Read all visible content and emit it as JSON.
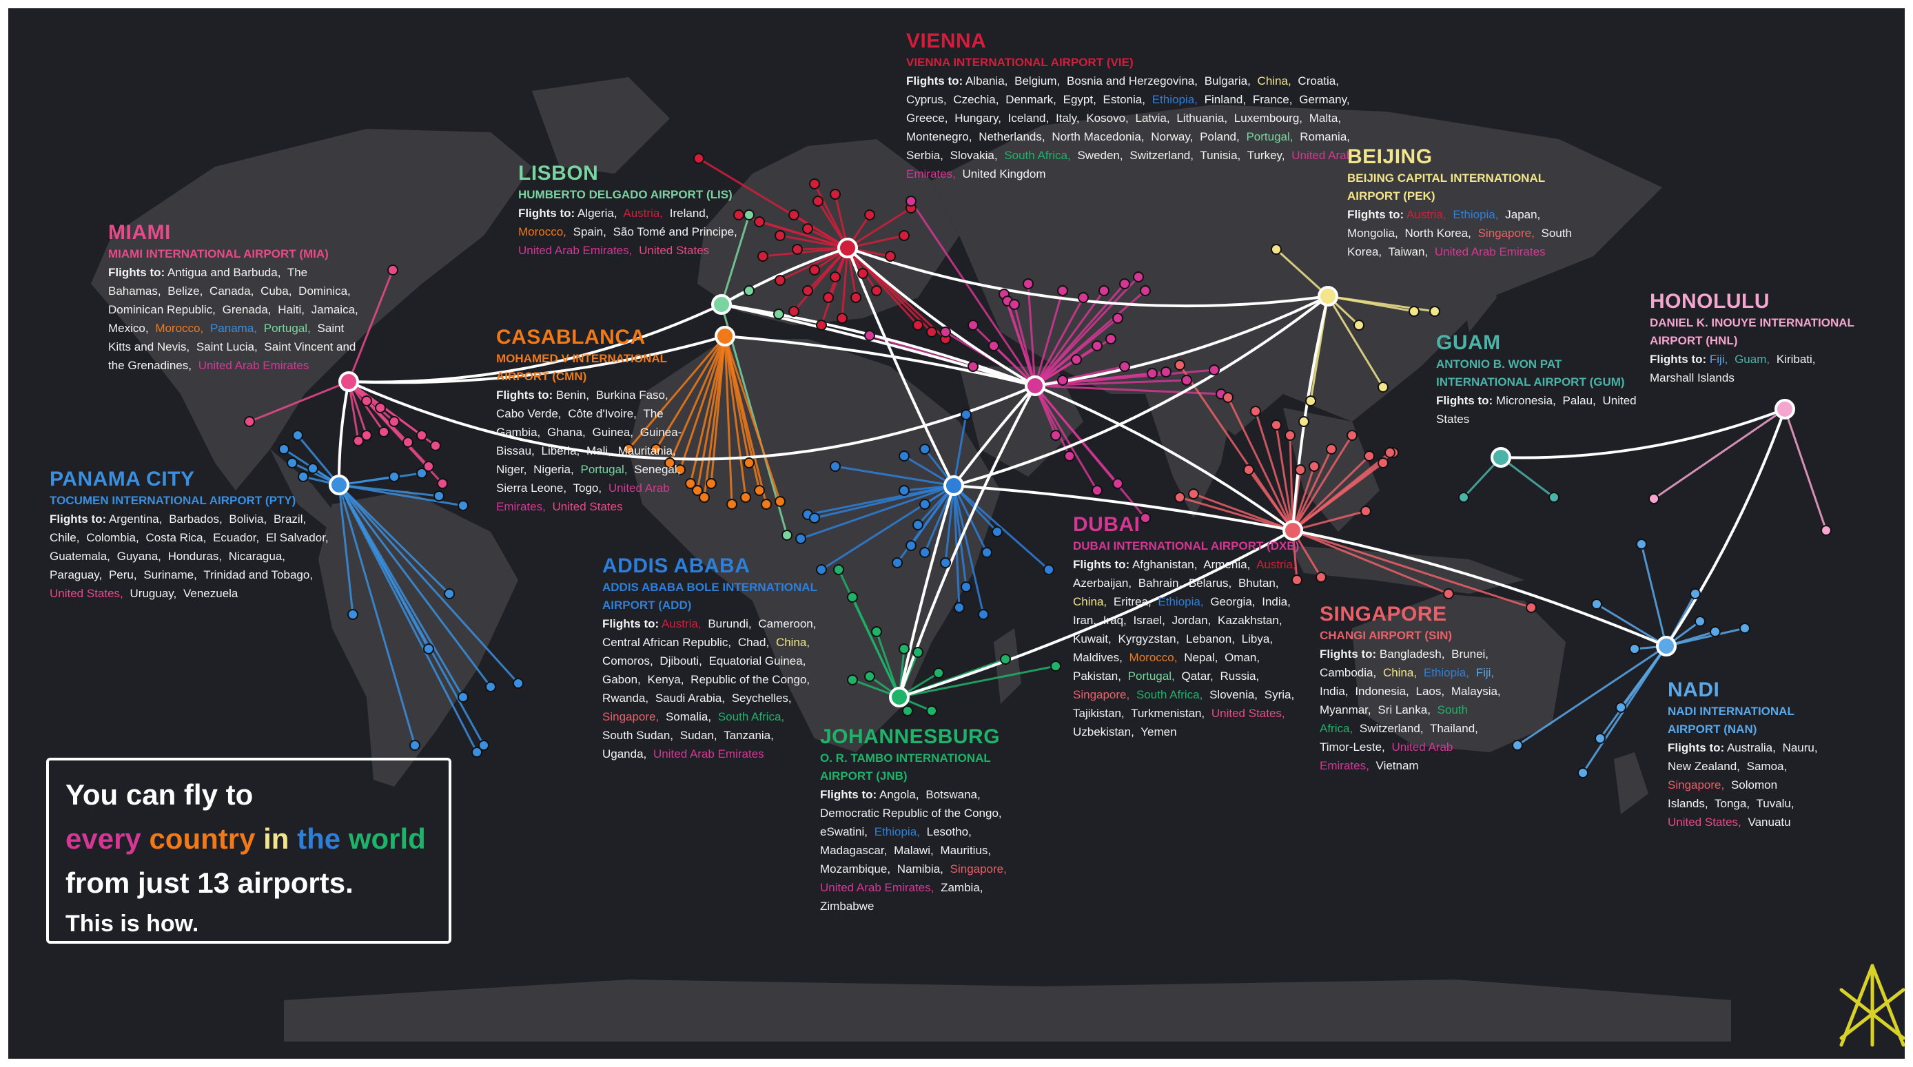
{
  "colors": {
    "background": "#1f1f26",
    "land": "#3b3b3f",
    "route_main": "#ffffff",
    "vienna": "#d21e3a",
    "lisbon": "#7ad4a0",
    "miami": "#e84a8a",
    "casablanca": "#f07a1a",
    "panama": "#3a8fde",
    "addis": "#2d7fd8",
    "johannesburg": "#1fb36a",
    "dubai": "#d43794",
    "beijing": "#f2e58a",
    "guam": "#4cb3a8",
    "honolulu": "#f5a6cf",
    "singapore": "#ea6068",
    "nadi": "#5aa8e8"
  },
  "hubs": [
    {
      "key": "vienna",
      "name": "VIENNA",
      "airport": "VIENNA INTERNATIONAL AIRPORT (VIE)",
      "flights_label": "Flights to:",
      "dests": [
        {
          "t": "Albania,"
        },
        {
          "t": "Belgium,"
        },
        {
          "t": "Bosnia and Herzegovina,"
        },
        {
          "t": "Bulgaria,"
        },
        {
          "t": "China,",
          "c": "beijing"
        },
        {
          "t": "Croatia,"
        },
        {
          "t": "Cyprus,"
        },
        {
          "t": "Czechia,"
        },
        {
          "t": "Denmark,"
        },
        {
          "t": "Egypt,"
        },
        {
          "t": "Estonia,"
        },
        {
          "t": "Ethiopia,",
          "c": "addis"
        },
        {
          "t": "Finland,"
        },
        {
          "t": "France,"
        },
        {
          "t": "Germany,"
        },
        {
          "t": "Greece,"
        },
        {
          "t": "Hungary,"
        },
        {
          "t": "Iceland,"
        },
        {
          "t": "Italy,"
        },
        {
          "t": "Kosovo,"
        },
        {
          "t": "Latvia,"
        },
        {
          "t": "Lithuania,"
        },
        {
          "t": "Luxembourg,"
        },
        {
          "t": "Malta,"
        },
        {
          "t": "Montenegro,"
        },
        {
          "t": "Netherlands,"
        },
        {
          "t": "North Macedonia,"
        },
        {
          "t": "Norway,"
        },
        {
          "t": "Poland,"
        },
        {
          "t": "Portugal,",
          "c": "lisbon"
        },
        {
          "t": "Romania,"
        },
        {
          "t": "Serbia,"
        },
        {
          "t": "Slovakia,"
        },
        {
          "t": "South Africa,",
          "c": "johannesburg"
        },
        {
          "t": "Sweden,"
        },
        {
          "t": "Switzerland,"
        },
        {
          "t": "Tunisia,"
        },
        {
          "t": "Turkey,"
        },
        {
          "t": "United Arab Emirates,",
          "c": "dubai"
        },
        {
          "t": "United Kingdom"
        }
      ]
    },
    {
      "key": "lisbon",
      "name": "LISBON",
      "airport": "HUMBERTO DELGADO AIRPORT (LIS)",
      "flights_label": "Flights to:",
      "dests": [
        {
          "t": "Algeria,"
        },
        {
          "t": "Austria,",
          "c": "vienna"
        },
        {
          "t": "Ireland,"
        },
        {
          "t": "Morocco,",
          "c": "casablanca"
        },
        {
          "t": "Spain,"
        },
        {
          "t": "São Tomé and Principe,"
        },
        {
          "t": "United Arab Emirates,",
          "c": "dubai"
        },
        {
          "t": "United States",
          "c": "miami"
        }
      ]
    },
    {
      "key": "miami",
      "name": "MIAMI",
      "airport": "MIAMI INTERNATIONAL AIRPORT (MIA)",
      "flights_label": "Flights to:",
      "dests": [
        {
          "t": "Antigua and Barbuda,"
        },
        {
          "t": "The Bahamas,"
        },
        {
          "t": "Belize,"
        },
        {
          "t": "Canada,"
        },
        {
          "t": "Cuba,"
        },
        {
          "t": "Dominica,"
        },
        {
          "t": "Dominican Republic,"
        },
        {
          "t": "Grenada,"
        },
        {
          "t": "Haiti,"
        },
        {
          "t": "Jamaica,"
        },
        {
          "t": "Mexico,"
        },
        {
          "t": "Morocco,",
          "c": "casablanca"
        },
        {
          "t": "Panama,",
          "c": "panama"
        },
        {
          "t": "Portugal,",
          "c": "lisbon"
        },
        {
          "t": "Saint Kitts and Nevis,"
        },
        {
          "t": "Saint Lucia,"
        },
        {
          "t": "Saint Vincent and the Grenadines,"
        },
        {
          "t": "United Arab Emirates",
          "c": "dubai"
        }
      ]
    },
    {
      "key": "casablanca",
      "name": "CASABLANCA",
      "airport": "MOHAMED V INTERNATIONAL AIRPORT (CMN)",
      "flights_label": "Flights to:",
      "dests": [
        {
          "t": "Benin,"
        },
        {
          "t": "Burkina Faso,"
        },
        {
          "t": "Cabo Verde,"
        },
        {
          "t": "Côte d'Ivoire,"
        },
        {
          "t": "The Gambia,"
        },
        {
          "t": "Ghana,"
        },
        {
          "t": "Guinea,"
        },
        {
          "t": "Guinea-Bissau,"
        },
        {
          "t": "Liberia,"
        },
        {
          "t": "Mali,"
        },
        {
          "t": "Mauritania,"
        },
        {
          "t": "Niger,"
        },
        {
          "t": "Nigeria,"
        },
        {
          "t": "Portugal,",
          "c": "lisbon"
        },
        {
          "t": "Senegal,"
        },
        {
          "t": "Sierra Leone,"
        },
        {
          "t": "Togo,"
        },
        {
          "t": "United Arab Emirates,",
          "c": "dubai"
        },
        {
          "t": "United States",
          "c": "miami"
        }
      ]
    },
    {
      "key": "panama",
      "name": "PANAMA CITY",
      "airport": "TOCUMEN INTERNATIONAL AIRPORT (PTY)",
      "flights_label": "Flights to:",
      "dests": [
        {
          "t": "Argentina,"
        },
        {
          "t": "Barbados,"
        },
        {
          "t": "Bolivia,"
        },
        {
          "t": "Brazil,"
        },
        {
          "t": "Chile,"
        },
        {
          "t": "Colombia,"
        },
        {
          "t": "Costa Rica,"
        },
        {
          "t": "Ecuador,"
        },
        {
          "t": "El Salvador,"
        },
        {
          "t": "Guatemala,"
        },
        {
          "t": "Guyana,"
        },
        {
          "t": "Honduras,"
        },
        {
          "t": "Nicaragua,"
        },
        {
          "t": "Paraguay,"
        },
        {
          "t": "Peru,"
        },
        {
          "t": "Suriname,"
        },
        {
          "t": "Trinidad and Tobago,"
        },
        {
          "t": "United States,",
          "c": "miami"
        },
        {
          "t": "Uruguay,"
        },
        {
          "t": "Venezuela"
        }
      ]
    },
    {
      "key": "addis",
      "name": "ADDIS ABABA",
      "airport": "ADDIS ABABA BOLE INTERNATIONAL AIRPORT (ADD)",
      "flights_label": "Flights to:",
      "dests": [
        {
          "t": "Austria,",
          "c": "vienna"
        },
        {
          "t": "Burundi,"
        },
        {
          "t": "Cameroon,"
        },
        {
          "t": "Central African Republic,"
        },
        {
          "t": "Chad,"
        },
        {
          "t": "China,",
          "c": "beijing"
        },
        {
          "t": "Comoros,"
        },
        {
          "t": "Djibouti,"
        },
        {
          "t": "Equatorial Guinea,"
        },
        {
          "t": "Gabon,"
        },
        {
          "t": "Kenya,"
        },
        {
          "t": "Republic of the Congo,"
        },
        {
          "t": "Rwanda,"
        },
        {
          "t": "Saudi Arabia,"
        },
        {
          "t": "Seychelles,"
        },
        {
          "t": "Singapore,",
          "c": "singapore"
        },
        {
          "t": "Somalia,"
        },
        {
          "t": "South Africa,",
          "c": "johannesburg"
        },
        {
          "t": "South Sudan,"
        },
        {
          "t": "Sudan,"
        },
        {
          "t": "Tanzania,"
        },
        {
          "t": "Uganda,"
        },
        {
          "t": "United Arab Emirates",
          "c": "dubai"
        }
      ]
    },
    {
      "key": "johannesburg",
      "name": "JOHANNESBURG",
      "airport": "O. R. TAMBO INTERNATIONAL AIRPORT (JNB)",
      "flights_label": "Flights to:",
      "dests": [
        {
          "t": "Angola,"
        },
        {
          "t": "Botswana,"
        },
        {
          "t": "Democratic Republic of the Congo,"
        },
        {
          "t": "eSwatini,"
        },
        {
          "t": "Ethiopia,",
          "c": "addis"
        },
        {
          "t": "Lesotho,"
        },
        {
          "t": "Madagascar,"
        },
        {
          "t": "Malawi,"
        },
        {
          "t": "Mauritius,"
        },
        {
          "t": "Mozambique,"
        },
        {
          "t": "Namibia,"
        },
        {
          "t": "Singapore,",
          "c": "singapore"
        },
        {
          "t": "United Arab Emirates,",
          "c": "dubai"
        },
        {
          "t": "Zambia,"
        },
        {
          "t": "Zimbabwe"
        }
      ]
    },
    {
      "key": "dubai",
      "name": "DUBAI",
      "airport": "DUBAI INTERNATIONAL AIRPORT (DXB)",
      "flights_label": "Flights to:",
      "dests": [
        {
          "t": "Afghanistan,"
        },
        {
          "t": "Armenia,"
        },
        {
          "t": "Austria,",
          "c": "vienna"
        },
        {
          "t": "Azerbaijan,"
        },
        {
          "t": "Bahrain,"
        },
        {
          "t": "Belarus,"
        },
        {
          "t": "Bhutan,"
        },
        {
          "t": "China,",
          "c": "beijing"
        },
        {
          "t": "Eritrea,"
        },
        {
          "t": "Ethiopia,",
          "c": "addis"
        },
        {
          "t": "Georgia,"
        },
        {
          "t": "India,"
        },
        {
          "t": "Iran,"
        },
        {
          "t": "Iraq,"
        },
        {
          "t": "Israel,"
        },
        {
          "t": "Jordan,"
        },
        {
          "t": "Kazakhstan,"
        },
        {
          "t": "Kuwait,"
        },
        {
          "t": "Kyrgyzstan,"
        },
        {
          "t": "Lebanon,"
        },
        {
          "t": "Libya,"
        },
        {
          "t": "Maldives,"
        },
        {
          "t": "Morocco,",
          "c": "casablanca"
        },
        {
          "t": "Nepal,"
        },
        {
          "t": "Oman,"
        },
        {
          "t": "Pakistan,"
        },
        {
          "t": "Portugal,",
          "c": "lisbon"
        },
        {
          "t": "Qatar,"
        },
        {
          "t": "Russia,"
        },
        {
          "t": "Singapore,",
          "c": "singapore"
        },
        {
          "t": "South Africa,",
          "c": "johannesburg"
        },
        {
          "t": "Slovenia,"
        },
        {
          "t": "Syria,"
        },
        {
          "t": "Tajikistan,"
        },
        {
          "t": "Turkmenistan,"
        },
        {
          "t": "United States,",
          "c": "miami"
        },
        {
          "t": "Uzbekistan,"
        },
        {
          "t": "Yemen"
        }
      ]
    },
    {
      "key": "beijing",
      "name": "BEIJING",
      "airport": "BEIJING CAPITAL INTERNATIONAL AIRPORT (PEK)",
      "flights_label": "Flights to:",
      "dests": [
        {
          "t": "Austria,",
          "c": "vienna"
        },
        {
          "t": "Ethiopia,",
          "c": "addis"
        },
        {
          "t": "Japan,"
        },
        {
          "t": "Mongolia,"
        },
        {
          "t": "North Korea,"
        },
        {
          "t": "Singapore,",
          "c": "singapore"
        },
        {
          "t": "South Korea,"
        },
        {
          "t": "Taiwan,"
        },
        {
          "t": "United Arab Emirates",
          "c": "dubai"
        }
      ]
    },
    {
      "key": "guam",
      "name": "GUAM",
      "airport": "ANTONIO B. WON PAT INTERNATIONAL AIRPORT (GUM)",
      "flights_label": "Flights to:",
      "dests": [
        {
          "t": "Micronesia,"
        },
        {
          "t": "Palau,"
        },
        {
          "t": "United States"
        }
      ]
    },
    {
      "key": "honolulu",
      "name": "HONOLULU",
      "airport": "DANIEL K. INOUYE INTERNATIONAL AIRPORT (HNL)",
      "flights_label": "Flights to:",
      "dests": [
        {
          "t": "Fiji,",
          "c": "nadi"
        },
        {
          "t": "Guam,",
          "c": "guam"
        },
        {
          "t": "Kiribati,"
        },
        {
          "t": "Marshall Islands"
        }
      ]
    },
    {
      "key": "singapore",
      "name": "SINGAPORE",
      "airport": "CHANGI AIRPORT (SIN)",
      "flights_label": "Flights to:",
      "dests": [
        {
          "t": "Bangladesh,"
        },
        {
          "t": "Brunei,"
        },
        {
          "t": "Cambodia,"
        },
        {
          "t": "China,",
          "c": "beijing"
        },
        {
          "t": "Ethiopia,",
          "c": "addis"
        },
        {
          "t": "Fiji,",
          "c": "nadi"
        },
        {
          "t": "India,"
        },
        {
          "t": "Indonesia,"
        },
        {
          "t": "Laos,"
        },
        {
          "t": "Malaysia,"
        },
        {
          "t": "Myanmar,"
        },
        {
          "t": "Sri Lanka,"
        },
        {
          "t": "South Africa,",
          "c": "johannesburg"
        },
        {
          "t": "Switzerland,"
        },
        {
          "t": "Thailand,"
        },
        {
          "t": "Timor-Leste,"
        },
        {
          "t": "United Arab Emirates,",
          "c": "dubai"
        },
        {
          "t": "Vietnam"
        }
      ]
    },
    {
      "key": "nadi",
      "name": "NADI",
      "airport": "NADI INTERNATIONAL AIRPORT (NAN)",
      "flights_label": "Flights to:",
      "dests": [
        {
          "t": "Australia,"
        },
        {
          "t": "Nauru,"
        },
        {
          "t": "New Zealand,"
        },
        {
          "t": "Samoa,"
        },
        {
          "t": "Singapore,",
          "c": "singapore"
        },
        {
          "t": "Solomon Islands,"
        },
        {
          "t": "Tonga,"
        },
        {
          "t": "Tuvalu,"
        },
        {
          "t": "United States,",
          "c": "miami"
        },
        {
          "t": "Vanuatu"
        }
      ]
    }
  ],
  "callout": {
    "line1": "You can fly to",
    "line2_words": [
      {
        "t": "every",
        "c": "dubai"
      },
      {
        "t": "country",
        "c": "casablanca"
      },
      {
        "t": "in",
        "c": "beijing"
      },
      {
        "t": "the",
        "c": "addis"
      },
      {
        "t": "world",
        "c": "johannesburg"
      }
    ],
    "line3": "from just 13 airports.",
    "line4": "This is how."
  },
  "logo": {
    "icon": "network-logo-icon",
    "color": "#d8d12a"
  }
}
